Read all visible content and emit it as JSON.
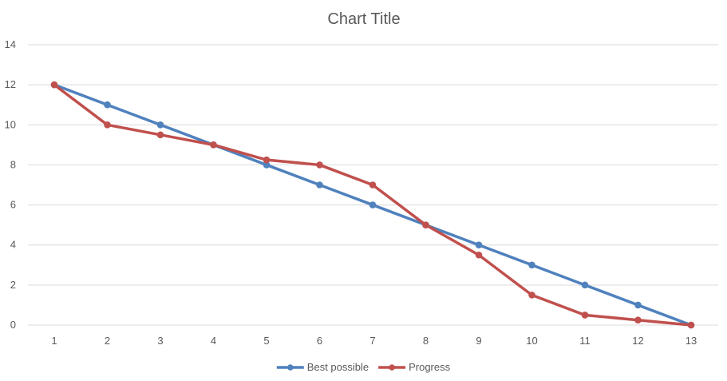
{
  "chart_data": {
    "type": "line",
    "title": "Chart Title",
    "xlabel": "",
    "ylabel": "",
    "x": [
      1,
      2,
      3,
      4,
      5,
      6,
      7,
      8,
      9,
      10,
      11,
      12,
      13
    ],
    "ylim": [
      0,
      14
    ],
    "yticks": [
      0,
      2,
      4,
      6,
      8,
      10,
      12,
      14
    ],
    "grid": true,
    "legend_position": "bottom",
    "series": [
      {
        "name": "Best possible",
        "color": "#4f81bd",
        "values": [
          12,
          11,
          10,
          9,
          8,
          7,
          6,
          5,
          4,
          3,
          2,
          1,
          0
        ]
      },
      {
        "name": "Progress",
        "color": "#c0504d",
        "values": [
          12,
          10,
          9.5,
          9,
          8.25,
          8,
          7,
          5,
          3.5,
          1.5,
          0.5,
          0.25,
          0
        ]
      }
    ]
  }
}
